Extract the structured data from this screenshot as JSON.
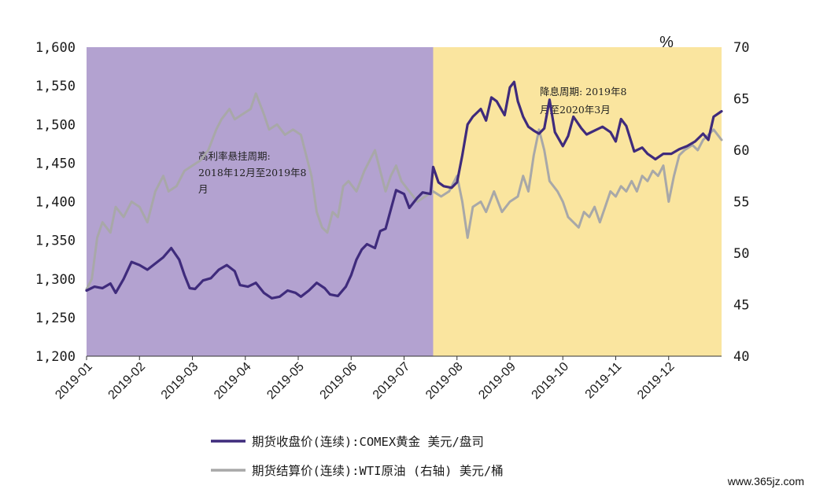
{
  "chart_data": {
    "type": "line",
    "left_axis": {
      "ticks": [
        "1,600",
        "1,550",
        "1,500",
        "1,450",
        "1,400",
        "1,350",
        "1,300",
        "1,250",
        "1,200"
      ],
      "range": [
        1200,
        1600
      ]
    },
    "right_axis": {
      "unit": "%",
      "ticks": [
        "70",
        "65",
        "60",
        "55",
        "50",
        "45",
        "40"
      ],
      "range": [
        40,
        70
      ]
    },
    "x_ticks": [
      "2019-01",
      "2019-02",
      "2019-03",
      "2019-04",
      "2019-05",
      "2019-06",
      "2019-07",
      "2019-08",
      "2019-09",
      "2019-10",
      "2019-11",
      "2019-12"
    ],
    "x_range": [
      0,
      12
    ],
    "regions": [
      {
        "label_lines": [
          "高利率悬挂周期:",
          "2018年12月至2019年8",
          "月"
        ],
        "from": 0,
        "to": 6.55,
        "color": "#b3a2d0"
      },
      {
        "label_lines": [
          "降息周期: 2019年8",
          "月至2020年3月"
        ],
        "from": 6.55,
        "to": 12,
        "color": "#fae59f"
      }
    ],
    "series": [
      {
        "name": "期货收盘价(连续):COMEX黄金 美元/盘司",
        "axis": "left",
        "color": "#3f2b7c",
        "points": [
          [
            0.0,
            1285
          ],
          [
            0.15,
            1290
          ],
          [
            0.3,
            1288
          ],
          [
            0.45,
            1294
          ],
          [
            0.55,
            1282
          ],
          [
            0.7,
            1300
          ],
          [
            0.85,
            1322
          ],
          [
            1.0,
            1318
          ],
          [
            1.15,
            1312
          ],
          [
            1.3,
            1320
          ],
          [
            1.45,
            1328
          ],
          [
            1.6,
            1340
          ],
          [
            1.75,
            1325
          ],
          [
            1.85,
            1305
          ],
          [
            1.95,
            1288
          ],
          [
            2.05,
            1287
          ],
          [
            2.2,
            1298
          ],
          [
            2.35,
            1301
          ],
          [
            2.5,
            1312
          ],
          [
            2.65,
            1318
          ],
          [
            2.8,
            1310
          ],
          [
            2.9,
            1292
          ],
          [
            3.05,
            1290
          ],
          [
            3.2,
            1295
          ],
          [
            3.35,
            1282
          ],
          [
            3.5,
            1275
          ],
          [
            3.65,
            1277
          ],
          [
            3.8,
            1285
          ],
          [
            3.95,
            1282
          ],
          [
            4.05,
            1277
          ],
          [
            4.2,
            1285
          ],
          [
            4.35,
            1295
          ],
          [
            4.5,
            1288
          ],
          [
            4.6,
            1280
          ],
          [
            4.75,
            1278
          ],
          [
            4.9,
            1290
          ],
          [
            5.0,
            1305
          ],
          [
            5.1,
            1325
          ],
          [
            5.2,
            1338
          ],
          [
            5.3,
            1345
          ],
          [
            5.45,
            1340
          ],
          [
            5.55,
            1362
          ],
          [
            5.65,
            1365
          ],
          [
            5.75,
            1390
          ],
          [
            5.85,
            1415
          ],
          [
            6.0,
            1410
          ],
          [
            6.1,
            1392
          ],
          [
            6.25,
            1405
          ],
          [
            6.35,
            1412
          ],
          [
            6.5,
            1410
          ],
          [
            6.55,
            1445
          ],
          [
            6.65,
            1425
          ],
          [
            6.75,
            1420
          ],
          [
            6.9,
            1418
          ],
          [
            7.0,
            1425
          ],
          [
            7.1,
            1460
          ],
          [
            7.2,
            1500
          ],
          [
            7.3,
            1510
          ],
          [
            7.45,
            1520
          ],
          [
            7.55,
            1505
          ],
          [
            7.65,
            1535
          ],
          [
            7.75,
            1530
          ],
          [
            7.9,
            1512
          ],
          [
            8.0,
            1548
          ],
          [
            8.08,
            1555
          ],
          [
            8.15,
            1530
          ],
          [
            8.25,
            1510
          ],
          [
            8.35,
            1497
          ],
          [
            8.45,
            1492
          ],
          [
            8.55,
            1488
          ],
          [
            8.65,
            1495
          ],
          [
            8.75,
            1532
          ],
          [
            8.85,
            1490
          ],
          [
            9.0,
            1472
          ],
          [
            9.1,
            1485
          ],
          [
            9.2,
            1510
          ],
          [
            9.35,
            1495
          ],
          [
            9.45,
            1487
          ],
          [
            9.6,
            1492
          ],
          [
            9.75,
            1497
          ],
          [
            9.9,
            1490
          ],
          [
            10.0,
            1478
          ],
          [
            10.1,
            1507
          ],
          [
            10.2,
            1498
          ],
          [
            10.35,
            1465
          ],
          [
            10.5,
            1470
          ],
          [
            10.6,
            1462
          ],
          [
            10.75,
            1455
          ],
          [
            10.9,
            1462
          ],
          [
            11.05,
            1462
          ],
          [
            11.2,
            1468
          ],
          [
            11.35,
            1472
          ],
          [
            11.5,
            1478
          ],
          [
            11.65,
            1488
          ],
          [
            11.75,
            1480
          ],
          [
            11.85,
            1510
          ],
          [
            12.0,
            1517
          ]
        ]
      },
      {
        "name": "期货结算价(连续):WTI原油 (右轴) 美元/桶",
        "axis": "right",
        "color": "#a8a8a8",
        "points": [
          [
            0.0,
            46.5
          ],
          [
            0.1,
            47.5
          ],
          [
            0.2,
            51.5
          ],
          [
            0.3,
            53.0
          ],
          [
            0.45,
            52.0
          ],
          [
            0.55,
            54.5
          ],
          [
            0.7,
            53.5
          ],
          [
            0.85,
            55.0
          ],
          [
            1.0,
            54.5
          ],
          [
            1.15,
            53.0
          ],
          [
            1.3,
            56.0
          ],
          [
            1.45,
            57.5
          ],
          [
            1.55,
            56.0
          ],
          [
            1.7,
            56.5
          ],
          [
            1.85,
            58.0
          ],
          [
            2.0,
            58.5
          ],
          [
            2.15,
            59.0
          ],
          [
            2.3,
            60.0
          ],
          [
            2.45,
            62.0
          ],
          [
            2.55,
            63.0
          ],
          [
            2.7,
            64.0
          ],
          [
            2.8,
            63.0
          ],
          [
            2.95,
            63.5
          ],
          [
            3.1,
            64.0
          ],
          [
            3.2,
            65.5
          ],
          [
            3.35,
            63.5
          ],
          [
            3.45,
            62.0
          ],
          [
            3.6,
            62.5
          ],
          [
            3.75,
            61.5
          ],
          [
            3.9,
            62.0
          ],
          [
            4.05,
            61.5
          ],
          [
            4.15,
            59.5
          ],
          [
            4.25,
            57.5
          ],
          [
            4.35,
            54.0
          ],
          [
            4.45,
            52.5
          ],
          [
            4.55,
            52.0
          ],
          [
            4.65,
            54.0
          ],
          [
            4.75,
            53.5
          ],
          [
            4.85,
            56.5
          ],
          [
            4.95,
            57.0
          ],
          [
            5.1,
            56.0
          ],
          [
            5.25,
            58.0
          ],
          [
            5.35,
            59.0
          ],
          [
            5.45,
            60.0
          ],
          [
            5.55,
            58.0
          ],
          [
            5.65,
            56.0
          ],
          [
            5.75,
            57.5
          ],
          [
            5.85,
            58.5
          ],
          [
            5.95,
            57.0
          ],
          [
            6.1,
            56.0
          ],
          [
            6.25,
            55.0
          ],
          [
            6.4,
            55.5
          ],
          [
            6.55,
            56.0
          ],
          [
            6.7,
            55.5
          ],
          [
            6.85,
            56.0
          ],
          [
            7.0,
            57.5
          ],
          [
            7.1,
            55.0
          ],
          [
            7.2,
            51.5
          ],
          [
            7.3,
            54.5
          ],
          [
            7.45,
            55.0
          ],
          [
            7.55,
            54.0
          ],
          [
            7.7,
            56.0
          ],
          [
            7.85,
            54.0
          ],
          [
            8.0,
            55.0
          ],
          [
            8.15,
            55.5
          ],
          [
            8.25,
            57.5
          ],
          [
            8.35,
            56.0
          ],
          [
            8.45,
            59.5
          ],
          [
            8.55,
            62.0
          ],
          [
            8.65,
            60.0
          ],
          [
            8.75,
            57.0
          ],
          [
            8.9,
            56.0
          ],
          [
            9.0,
            55.0
          ],
          [
            9.1,
            53.5
          ],
          [
            9.2,
            53.0
          ],
          [
            9.3,
            52.5
          ],
          [
            9.4,
            54.0
          ],
          [
            9.5,
            53.5
          ],
          [
            9.6,
            54.5
          ],
          [
            9.7,
            53.0
          ],
          [
            9.8,
            54.5
          ],
          [
            9.9,
            56.0
          ],
          [
            10.0,
            55.5
          ],
          [
            10.1,
            56.5
          ],
          [
            10.2,
            56.0
          ],
          [
            10.3,
            57.0
          ],
          [
            10.4,
            56.0
          ],
          [
            10.5,
            57.5
          ],
          [
            10.6,
            57.0
          ],
          [
            10.7,
            58.0
          ],
          [
            10.8,
            57.5
          ],
          [
            10.9,
            58.5
          ],
          [
            11.0,
            55.0
          ],
          [
            11.1,
            57.5
          ],
          [
            11.2,
            59.5
          ],
          [
            11.3,
            60.0
          ],
          [
            11.45,
            60.5
          ],
          [
            11.55,
            60.0
          ],
          [
            11.65,
            61.0
          ],
          [
            11.75,
            61.5
          ],
          [
            11.85,
            62.0
          ],
          [
            12.0,
            61.0
          ]
        ]
      }
    ]
  },
  "watermark": "www.365jz.com"
}
